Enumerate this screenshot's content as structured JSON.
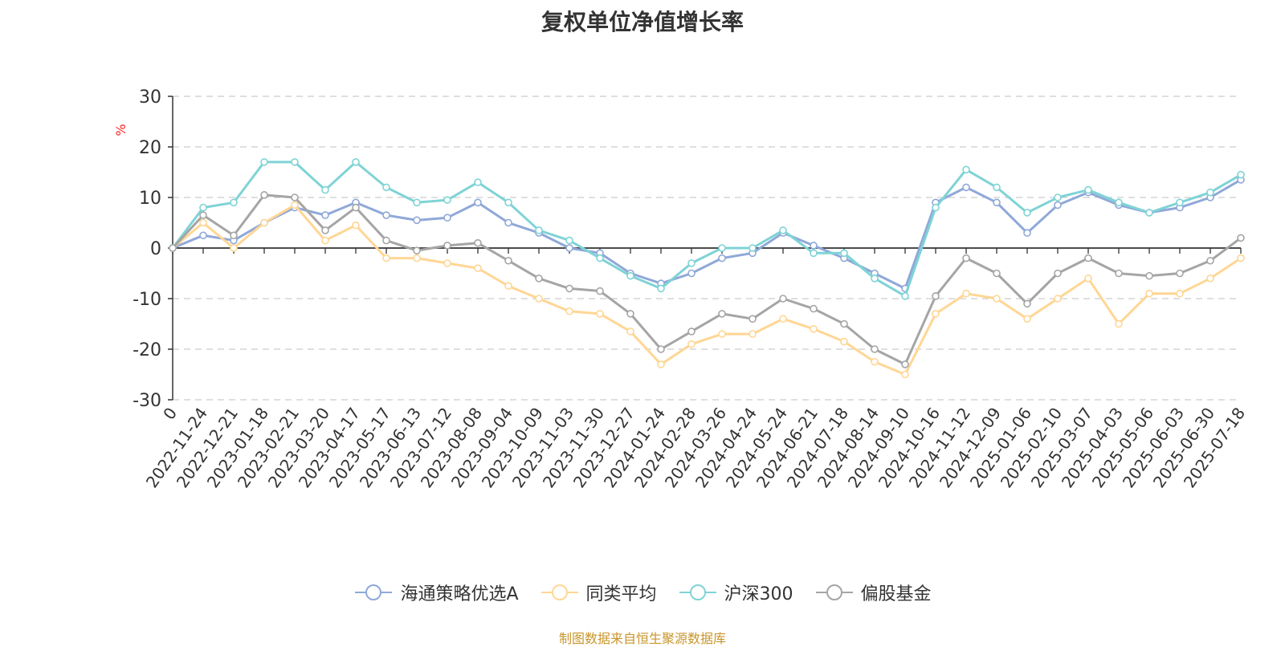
{
  "chart_data": {
    "type": "line",
    "title": "复权单位净值增长率",
    "ylabel": "%",
    "ylim": [
      -30,
      30
    ],
    "yticks": [
      30,
      20,
      10,
      0,
      -10,
      -20,
      -30
    ],
    "grid": true,
    "legend_position": "bottom",
    "categories": [
      "0",
      "2022-11-24",
      "2022-12-21",
      "2023-01-18",
      "2023-02-21",
      "2023-03-20",
      "2023-04-17",
      "2023-05-17",
      "2023-06-13",
      "2023-07-12",
      "2023-08-08",
      "2023-09-04",
      "2023-10-09",
      "2023-11-03",
      "2023-11-30",
      "2023-12-27",
      "2024-01-24",
      "2024-02-28",
      "2024-03-26",
      "2024-04-24",
      "2024-05-24",
      "2024-06-21",
      "2024-07-18",
      "2024-08-14",
      "2024-09-10",
      "2024-10-16",
      "2024-11-12",
      "2024-12-09",
      "2025-01-06",
      "2025-02-10",
      "2025-03-07",
      "2025-04-03",
      "2025-05-06",
      "2025-06-03",
      "2025-06-30",
      "2025-07-18"
    ],
    "series": [
      {
        "name": "海通策略优选A",
        "color": "#8fa8d8",
        "values": [
          0,
          2.5,
          1.5,
          5,
          8,
          6.5,
          9,
          6.5,
          5.5,
          6,
          9,
          5,
          3,
          0,
          -1,
          -5,
          -7,
          -5,
          -2,
          -1,
          3,
          0.5,
          -2,
          -5,
          -8,
          9,
          12,
          9,
          3,
          8.5,
          11,
          8.5,
          7,
          8,
          10,
          13.5
        ]
      },
      {
        "name": "同类平均",
        "color": "#ffd694",
        "values": [
          0,
          5,
          0,
          5,
          8.5,
          1.5,
          4.5,
          -2,
          -2,
          -3,
          -4,
          -7.5,
          -10,
          -12.5,
          -13,
          -16.5,
          -23,
          -19,
          -17,
          -17,
          -14,
          -16,
          -18.5,
          -22.5,
          -25,
          -13,
          -9,
          -10,
          -14,
          -10,
          -6,
          -15,
          -9,
          -9,
          -6,
          -2
        ]
      },
      {
        "name": "沪深300",
        "color": "#7fd3d6",
        "values": [
          0,
          8,
          9,
          17,
          17,
          11.5,
          17,
          12,
          9,
          9.5,
          13,
          9,
          3.5,
          1.5,
          -2,
          -5.5,
          -8,
          -3,
          0,
          0,
          3.5,
          -1,
          -1,
          -6,
          -9.5,
          8,
          15.5,
          12,
          7,
          10,
          11.5,
          9,
          7,
          9,
          11,
          14.5
        ]
      },
      {
        "name": "偏股基金",
        "color": "#a5a5a5",
        "values": [
          0,
          6.5,
          2.5,
          10.5,
          10,
          3.5,
          8,
          1.5,
          -0.5,
          0.5,
          1,
          -2.5,
          -6,
          -8,
          -8.5,
          -13,
          -20,
          -16.5,
          -13,
          -14,
          -10,
          -12,
          -15,
          -20,
          -23,
          -9.5,
          -2,
          -5,
          -11,
          -5,
          -2,
          -5,
          -5.5,
          -5,
          -2.5,
          2
        ]
      }
    ]
  },
  "source_note": "制图数据来自恒生聚源数据库"
}
